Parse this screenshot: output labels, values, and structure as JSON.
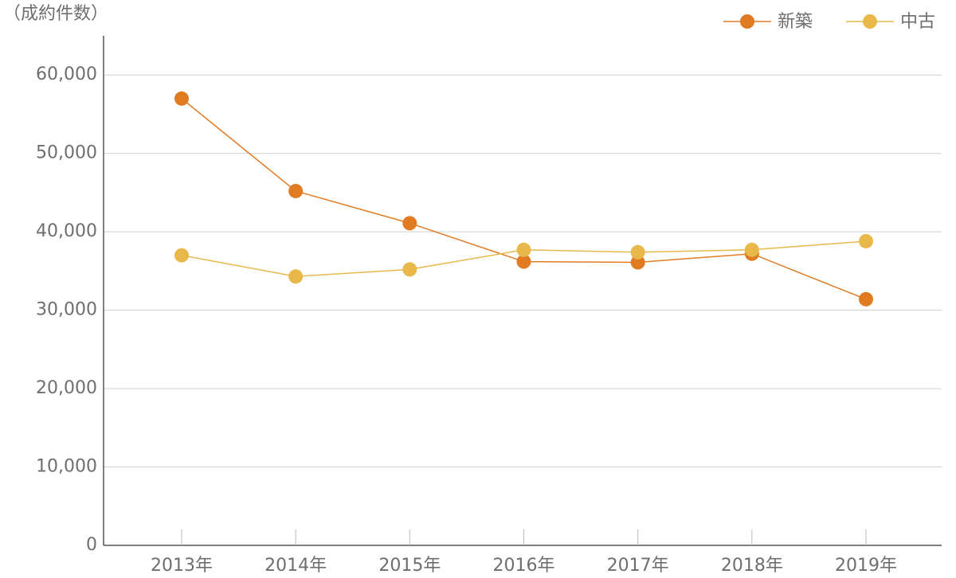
{
  "chart_data": {
    "type": "line",
    "y_label": "（成約件数）",
    "categories": [
      "2013年",
      "2014年",
      "2015年",
      "2016年",
      "2017年",
      "2018年",
      "2019年"
    ],
    "series": [
      {
        "name": "新築",
        "color": "#e07b22",
        "values": [
          57000,
          45200,
          41100,
          36200,
          36100,
          37200,
          31400
        ]
      },
      {
        "name": "中古",
        "color": "#e8b84a",
        "values": [
          37000,
          34300,
          35200,
          37700,
          37400,
          37700,
          38800
        ]
      }
    ],
    "ylim": [
      0,
      65000
    ],
    "yticks": [
      0,
      {
        "value": 10000,
        "label": "10,000"
      },
      {
        "value": 20000,
        "label": "20,000"
      },
      {
        "value": 30000,
        "label": "30,000"
      },
      {
        "value": 40000,
        "label": "40,000"
      },
      {
        "value": 50000,
        "label": "50,000"
      },
      {
        "value": 60000,
        "label": "60,000"
      }
    ],
    "grid": true
  }
}
